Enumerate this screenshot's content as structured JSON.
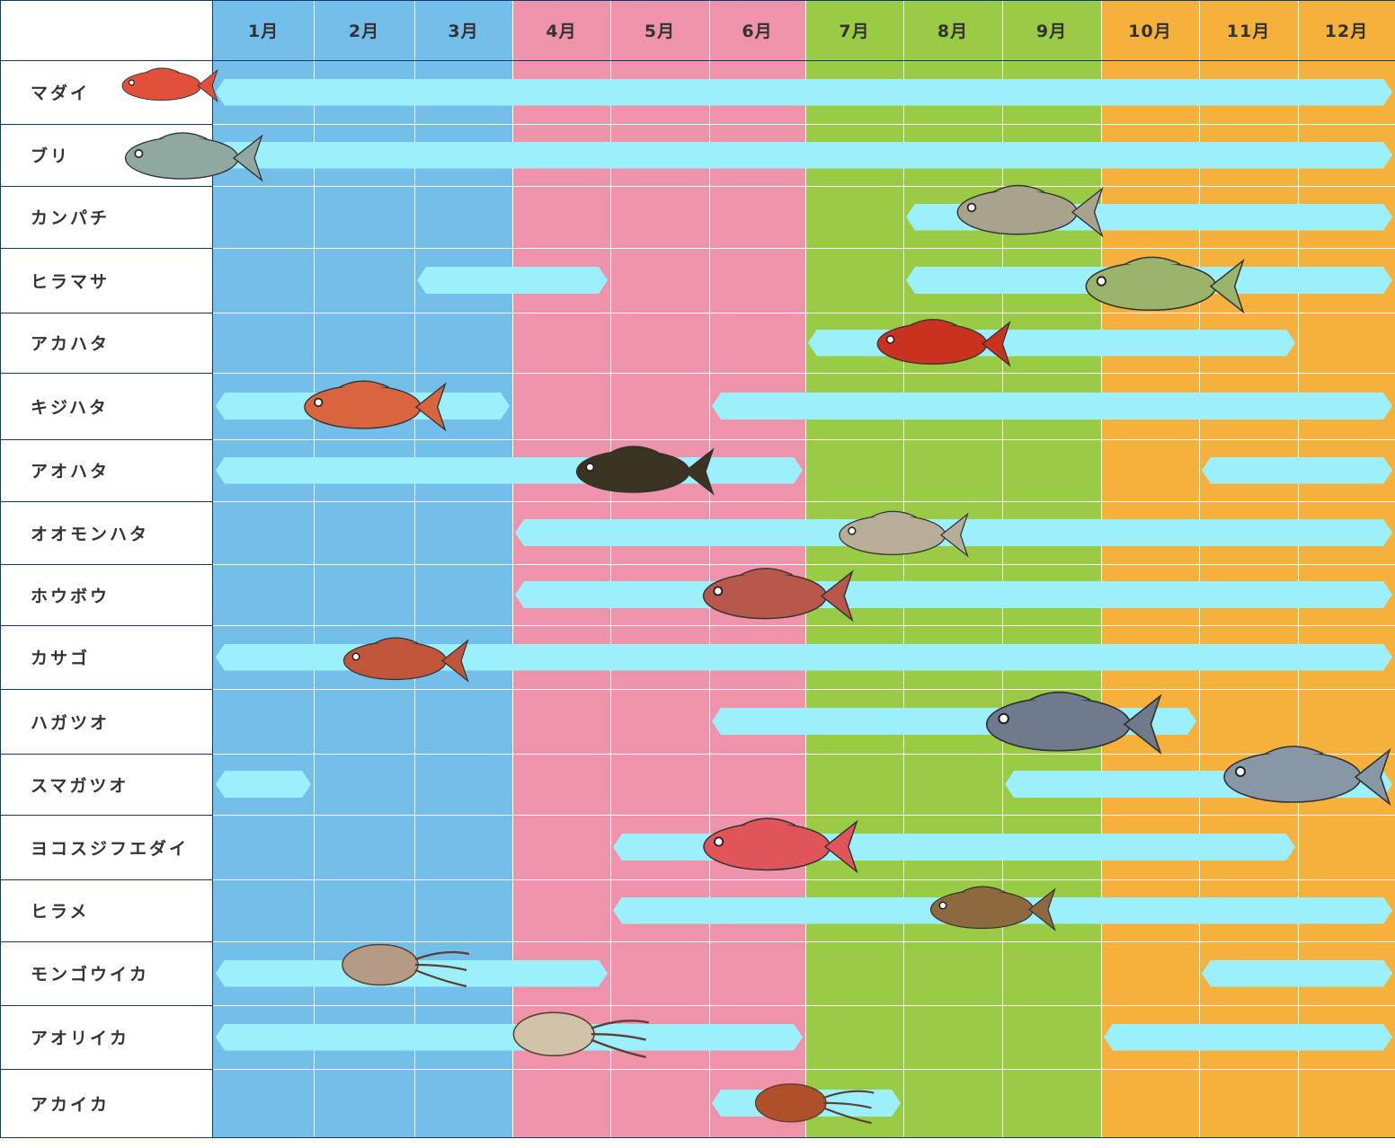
{
  "chart_data": {
    "type": "gantt",
    "title": "",
    "months": [
      "1月",
      "2月",
      "3月",
      "4月",
      "5月",
      "6月",
      "7月",
      "8月",
      "9月",
      "10月",
      "11月",
      "12月"
    ],
    "season_colors": [
      "#74bfea",
      "#74bfea",
      "#74bfea",
      "#ee93aa",
      "#ee93aa",
      "#ee93aa",
      "#99cc44",
      "#99cc44",
      "#99cc44",
      "#f6b13c",
      "#f6b13c",
      "#f6b13c"
    ],
    "bar_color": "#9bf0fc",
    "series": [
      {
        "name": "マダイ",
        "periods": [
          [
            1,
            12
          ]
        ],
        "color": "#e0503a"
      },
      {
        "name": "ブリ",
        "periods": [
          [
            1,
            12
          ]
        ],
        "color": "#8fa8a0"
      },
      {
        "name": "カンパチ",
        "periods": [
          [
            8,
            12
          ]
        ],
        "color": "#a9a38e"
      },
      {
        "name": "ヒラマサ",
        "periods": [
          [
            3,
            4
          ],
          [
            8,
            12
          ]
        ],
        "color": "#9bb36a"
      },
      {
        "name": "アカハタ",
        "periods": [
          [
            7,
            11
          ]
        ],
        "color": "#c8321e"
      },
      {
        "name": "キジハタ",
        "periods": [
          [
            1,
            3
          ],
          [
            6,
            12
          ]
        ],
        "color": "#d9653e"
      },
      {
        "name": "アオハタ",
        "periods": [
          [
            1,
            6
          ],
          [
            11,
            12
          ]
        ],
        "color": "#3a3322"
      },
      {
        "name": "オオモンハタ",
        "periods": [
          [
            4,
            12
          ]
        ],
        "color": "#b8ad96"
      },
      {
        "name": "ホウボウ",
        "periods": [
          [
            4,
            12
          ]
        ],
        "color": "#b8584a"
      },
      {
        "name": "カサゴ",
        "periods": [
          [
            1,
            12
          ]
        ],
        "color": "#c0553a"
      },
      {
        "name": "ハガツオ",
        "periods": [
          [
            6,
            10
          ]
        ],
        "color": "#6f7a8c"
      },
      {
        "name": "スマガツオ",
        "periods": [
          [
            1,
            1
          ],
          [
            9,
            12
          ]
        ],
        "color": "#8897a6"
      },
      {
        "name": "ヨコスジフエダイ",
        "periods": [
          [
            5,
            11
          ]
        ],
        "color": "#e0555a"
      },
      {
        "name": "ヒラメ",
        "periods": [
          [
            5,
            12
          ]
        ],
        "color": "#8c6a3e"
      },
      {
        "name": "モンゴウイカ",
        "periods": [
          [
            1,
            4
          ],
          [
            11,
            12
          ]
        ],
        "color": "#b59b86"
      },
      {
        "name": "アオリイカ",
        "periods": [
          [
            1,
            6
          ],
          [
            10,
            12
          ]
        ],
        "color": "#cfc2a8"
      },
      {
        "name": "アカイカ",
        "periods": [
          [
            6,
            7
          ]
        ],
        "color": "#b0502a"
      }
    ]
  }
}
